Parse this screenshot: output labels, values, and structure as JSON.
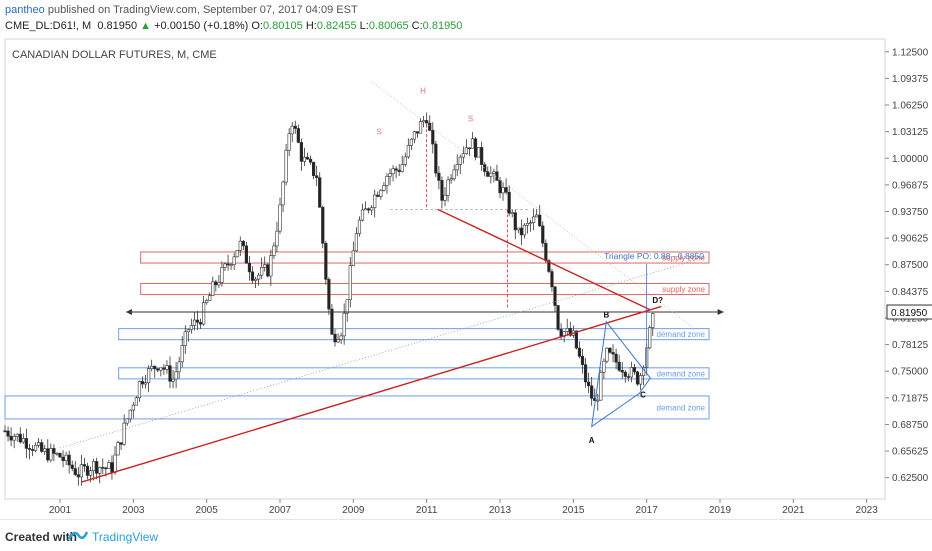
{
  "header": {
    "author": "pantheo",
    "published": "published on TradingView.com, September 07, 2017 04:09 EST",
    "symbol": "CME_DL:D61!, M",
    "price": "0.81950",
    "change": "+0.00150 (+0.18%)",
    "o_label": "O:",
    "o_value": "0.80105",
    "h_label": "H:",
    "h_value": "0.82455",
    "l_label": "L:",
    "l_value": "0.80065",
    "c_label": "C:",
    "c_value": "0.81950"
  },
  "footer": {
    "created": "Created with",
    "brand": "TradingView"
  },
  "colors": {
    "up": "#2a9d3a",
    "supply": "#e06666",
    "demand": "#6d9ee8",
    "trend": "#cc2222",
    "triangle": "#3a74c8"
  },
  "chart_data": {
    "type": "candlestick",
    "title": "CANADIAN DOLLAR FUTURES, M, CME",
    "x_ticks": [
      "2001",
      "2003",
      "2005",
      "2007",
      "2009",
      "2011",
      "2013",
      "2015",
      "2017",
      "2019",
      "2021",
      "2023"
    ],
    "y_ticks": [
      "1.12500",
      "1.09375",
      "1.06250",
      "1.03125",
      "1.00000",
      "0.96875",
      "0.93750",
      "0.90625",
      "0.87500",
      "0.84375",
      "0.81250",
      "0.78125",
      "0.75000",
      "0.71875",
      "0.68750",
      "0.65625",
      "0.62500"
    ],
    "ylim": [
      0.6,
      1.14
    ],
    "last_price_label": "0.81950",
    "price_path": [
      [
        2000.0,
        0.68
      ],
      [
        2000.5,
        0.67
      ],
      [
        2001.0,
        0.655
      ],
      [
        2001.5,
        0.65
      ],
      [
        2002.0,
        0.63
      ],
      [
        2002.4,
        0.64
      ],
      [
        2002.9,
        0.635
      ],
      [
        2003.3,
        0.69
      ],
      [
        2003.7,
        0.74
      ],
      [
        2004.2,
        0.76
      ],
      [
        2004.6,
        0.74
      ],
      [
        2005.0,
        0.8
      ],
      [
        2005.3,
        0.81
      ],
      [
        2005.7,
        0.85
      ],
      [
        2006.0,
        0.87
      ],
      [
        2006.4,
        0.9
      ],
      [
        2006.8,
        0.86
      ],
      [
        2007.2,
        0.87
      ],
      [
        2007.5,
        0.94
      ],
      [
        2007.8,
        1.05
      ],
      [
        2008.1,
        1.0
      ],
      [
        2008.5,
        0.98
      ],
      [
        2008.9,
        0.79
      ],
      [
        2009.2,
        0.8
      ],
      [
        2009.6,
        0.92
      ],
      [
        2010.0,
        0.95
      ],
      [
        2010.4,
        0.98
      ],
      [
        2010.8,
        0.99
      ],
      [
        2011.2,
        1.03
      ],
      [
        2011.5,
        1.05
      ],
      [
        2011.9,
        0.95
      ],
      [
        2012.3,
        1.0
      ],
      [
        2012.7,
        1.02
      ],
      [
        2013.1,
        0.99
      ],
      [
        2013.6,
        0.96
      ],
      [
        2014.0,
        0.91
      ],
      [
        2014.5,
        0.93
      ],
      [
        2014.9,
        0.86
      ],
      [
        2015.1,
        0.8
      ],
      [
        2015.5,
        0.79
      ],
      [
        2015.9,
        0.73
      ],
      [
        2016.1,
        0.71
      ],
      [
        2016.4,
        0.77
      ],
      [
        2016.7,
        0.76
      ],
      [
        2017.0,
        0.75
      ],
      [
        2017.3,
        0.74
      ],
      [
        2017.5,
        0.78
      ],
      [
        2017.7,
        0.815
      ]
    ],
    "zones": [
      {
        "label": "supply zone",
        "kind": "supply",
        "x0": 2003.7,
        "x1": 2019.2,
        "y0": 0.877,
        "y1": 0.89
      },
      {
        "label": "supply zone",
        "kind": "supply",
        "x0": 2003.7,
        "x1": 2019.2,
        "y0": 0.84,
        "y1": 0.853
      },
      {
        "label": "demand zone",
        "kind": "demand",
        "x0": 2003.1,
        "x1": 2019.2,
        "y0": 0.787,
        "y1": 0.8
      },
      {
        "label": "demand zone",
        "kind": "demand",
        "x0": 2003.1,
        "x1": 2019.2,
        "y0": 0.741,
        "y1": 0.754
      },
      {
        "label": "demand zone",
        "kind": "demand",
        "x0": 2000.0,
        "x1": 2019.2,
        "y0": 0.694,
        "y1": 0.721
      }
    ],
    "annotations": [
      {
        "text": "Triangle PO: 0.88 - 0.8850",
        "x": 2017.7,
        "y": 0.882
      },
      {
        "text": "B",
        "x": 2016.4,
        "y": 0.813
      },
      {
        "text": "C",
        "x": 2017.4,
        "y": 0.719
      },
      {
        "text": "A",
        "x": 2016.0,
        "y": 0.666
      },
      {
        "text": "D?",
        "x": 2017.8,
        "y": 0.83
      },
      {
        "text": "H",
        "x": 2011.4,
        "y": 1.076
      },
      {
        "text": "S",
        "x": 2010.2,
        "y": 1.028
      },
      {
        "text": "S",
        "x": 2012.7,
        "y": 1.043
      }
    ]
  }
}
